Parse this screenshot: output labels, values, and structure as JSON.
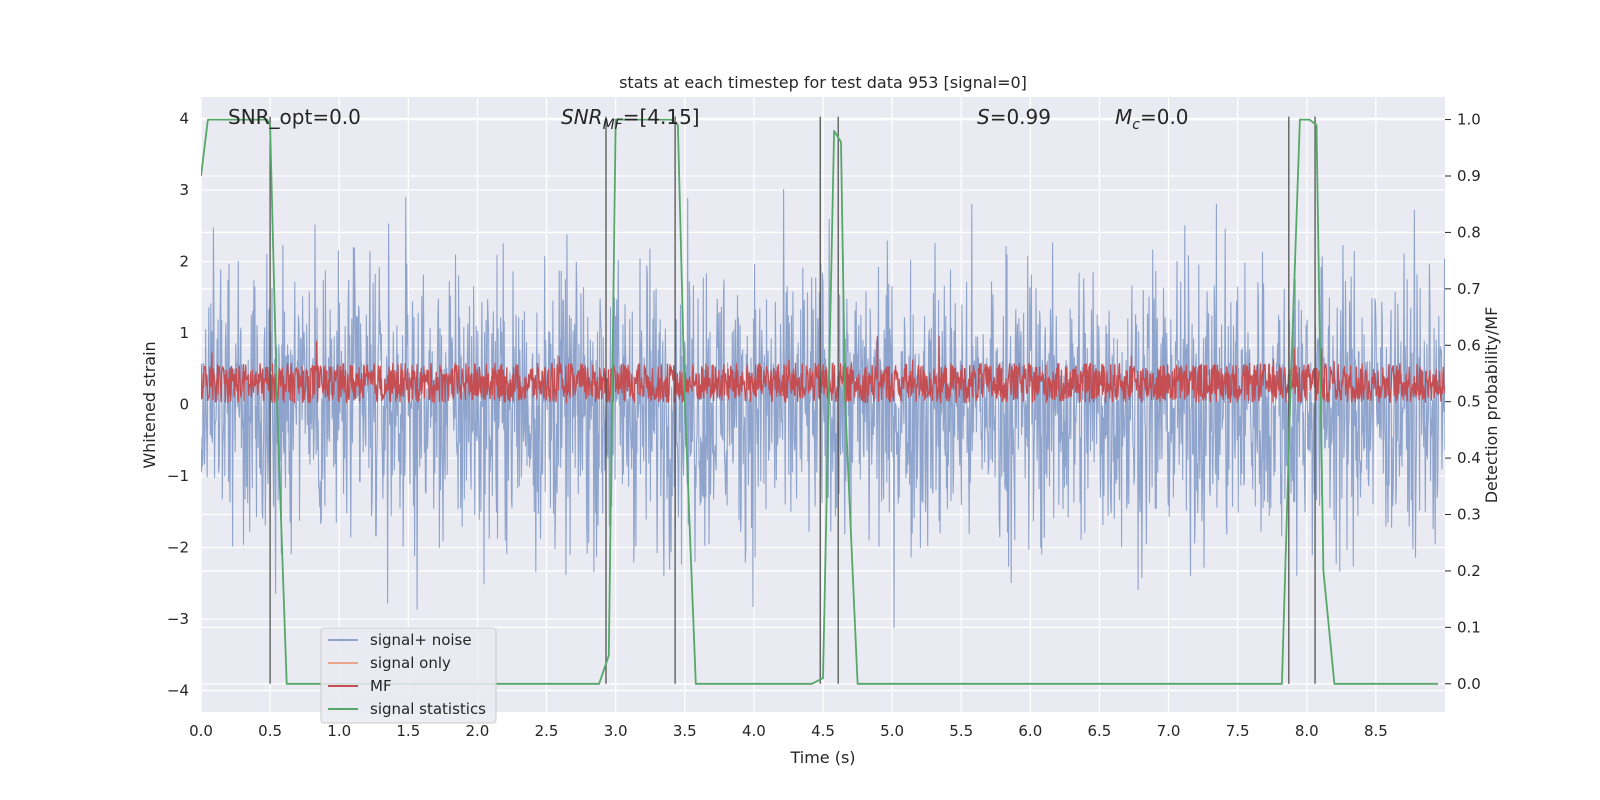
{
  "chart_data": {
    "type": "line",
    "title": "stats at each timestep for test data 953 [signal=0]",
    "xlabel": "Time (s)",
    "ylabel_left": "Whitened strain",
    "ylabel_right": "Detection probability/MF",
    "xlim": [
      0.0,
      9.0
    ],
    "ylim_left": [
      -4.3,
      4.3
    ],
    "ylim_right": [
      -0.05,
      1.04
    ],
    "x_ticks": [
      "0.0",
      "0.5",
      "1.0",
      "1.5",
      "2.0",
      "2.5",
      "3.0",
      "3.5",
      "4.0",
      "4.5",
      "5.0",
      "5.5",
      "6.0",
      "6.5",
      "7.0",
      "7.5",
      "8.0",
      "8.5"
    ],
    "y_ticks_left": [
      "4",
      "3",
      "2",
      "1",
      "0",
      "−1",
      "−2",
      "−3",
      "−4"
    ],
    "y_ticks_right": [
      "1.0",
      "0.9",
      "0.8",
      "0.7",
      "0.6",
      "0.5",
      "0.4",
      "0.3",
      "0.2",
      "0.1",
      "0.0"
    ],
    "grid": true,
    "legend_position": "lower-left",
    "annotations": {
      "snr_opt": "SNR_opt=0.0",
      "snr_mf_main": "SNR",
      "snr_mf_sub": "MF",
      "snr_mf_value": "=[4.15]",
      "s_main": "S",
      "s_value": "=0.99",
      "mc_main": "M",
      "mc_sub": "c",
      "mc_value": "=0.0"
    },
    "series": [
      {
        "name": "signal+ noise",
        "color": "#8fa4cc",
        "noise_amplitude": 1.0,
        "axis": "left"
      },
      {
        "name": "signal only",
        "color": "#e8a58a",
        "values": [],
        "axis": "left"
      },
      {
        "name": "MF",
        "color": "#c44e52",
        "baseline": 0.3,
        "axis": "left"
      },
      {
        "name": "signal statistics",
        "color": "#55a868",
        "axis": "right",
        "x": [
          0.0,
          0.05,
          0.48,
          0.5,
          0.55,
          0.62,
          0.7,
          2.88,
          2.95,
          3.0,
          3.4,
          3.45,
          3.5,
          3.58,
          3.7,
          4.42,
          4.5,
          4.58,
          4.63,
          4.66,
          4.75,
          4.9,
          7.82,
          7.88,
          7.95,
          8.02,
          8.07,
          8.12,
          8.2,
          8.95
        ],
        "y": [
          0.9,
          1.0,
          1.0,
          0.99,
          0.5,
          0.0,
          0.0,
          0.0,
          0.05,
          1.0,
          1.0,
          0.99,
          0.5,
          0.0,
          0.0,
          0.0,
          0.01,
          0.98,
          0.96,
          0.5,
          0.0,
          0.0,
          0.0,
          0.5,
          1.0,
          1.0,
          0.99,
          0.2,
          0.0,
          0.0
        ]
      }
    ],
    "vertical_markers": {
      "color": "#555555",
      "x": [
        0.5,
        2.93,
        3.43,
        4.48,
        4.61,
        7.87,
        8.06
      ]
    }
  }
}
